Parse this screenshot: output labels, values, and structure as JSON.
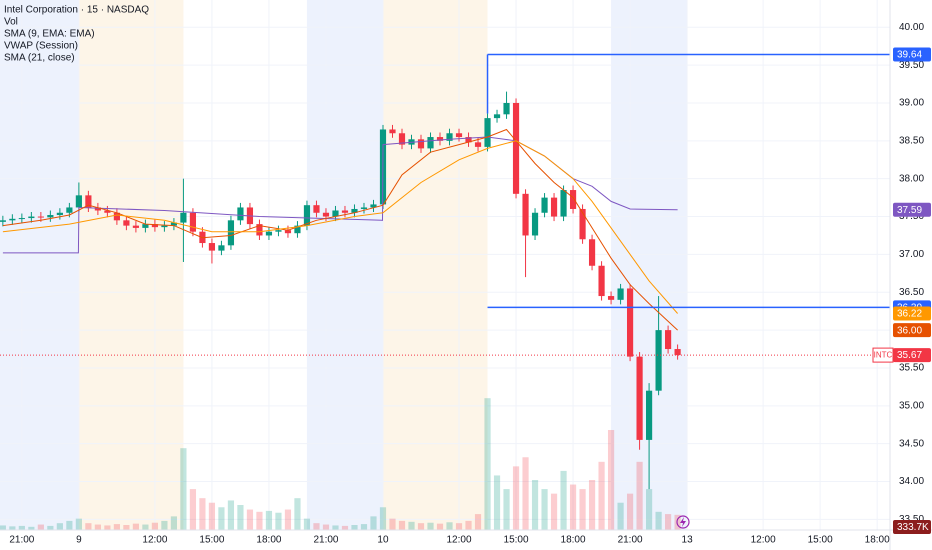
{
  "chart_data": {
    "type": "candlestick",
    "title": "Intel Corporation · 15 · NASDAQ",
    "indicators_legend": [
      "Vol",
      "SMA (9, EMA: EMA)",
      "VWAP (Session)",
      "SMA (21, close)"
    ],
    "up_color": "#089981",
    "down_color": "#f23645",
    "grid": true,
    "xlim": [
      -4.6,
      182.7
    ],
    "ylim": [
      33.36,
      40.36
    ],
    "vlim": [
      0,
      5500000
    ],
    "xticks": [
      {
        "value": 0,
        "label": "21:00"
      },
      {
        "value": 12,
        "label": "9"
      },
      {
        "value": 28,
        "label": "12:00"
      },
      {
        "value": 40,
        "label": "15:00"
      },
      {
        "value": 52,
        "label": "18:00"
      },
      {
        "value": 64,
        "label": "21:00"
      },
      {
        "value": 76,
        "label": "10"
      },
      {
        "value": 92,
        "label": "12:00"
      },
      {
        "value": 104,
        "label": "15:00"
      },
      {
        "value": 116,
        "label": "18:00"
      },
      {
        "value": 128,
        "label": "21:00"
      },
      {
        "value": 140,
        "label": "13"
      },
      {
        "value": 156,
        "label": "12:00"
      },
      {
        "value": 168,
        "label": "15:00"
      },
      {
        "value": 180,
        "label": "18:00"
      }
    ],
    "yticks": [
      {
        "value": 33.5,
        "label": "33.50"
      },
      {
        "value": 34,
        "label": "34.00"
      },
      {
        "value": 34.5,
        "label": "34.50"
      },
      {
        "value": 35,
        "label": "35.00"
      },
      {
        "value": 35.5,
        "label": "35.50"
      },
      {
        "value": 36,
        "label": "36.00"
      },
      {
        "value": 36.5,
        "label": "36.50"
      },
      {
        "value": 37,
        "label": "37.00"
      },
      {
        "value": 37.5,
        "label": "37.50"
      },
      {
        "value": 38,
        "label": "38.00"
      },
      {
        "value": 38.5,
        "label": "38.50"
      },
      {
        "value": 39,
        "label": "39.00"
      },
      {
        "value": 39.5,
        "label": "39.50"
      },
      {
        "value": 40,
        "label": "40.00"
      }
    ],
    "sessions": [
      {
        "start": -4.6,
        "end": 12,
        "color": "#edf2fd"
      },
      {
        "start": 12,
        "end": 34,
        "color": "#fdf5e8"
      },
      {
        "start": 60,
        "end": 76,
        "color": "#edf2fd"
      },
      {
        "start": 76,
        "end": 98,
        "color": "#fdf5e8"
      },
      {
        "start": 124,
        "end": 140,
        "color": "#edf2fd"
      }
    ],
    "x": [
      -4,
      -2,
      0,
      2,
      4,
      6,
      8,
      10,
      12,
      14,
      16,
      18,
      20,
      22,
      24,
      26,
      28,
      30,
      32,
      34,
      36,
      38,
      40,
      42,
      44,
      46,
      48,
      50,
      52,
      54,
      56,
      58,
      60,
      62,
      64,
      66,
      68,
      70,
      72,
      74,
      76,
      78,
      80,
      82,
      84,
      86,
      88,
      90,
      92,
      94,
      96,
      98,
      100,
      102,
      104,
      106,
      108,
      110,
      112,
      114,
      116,
      118,
      120,
      122,
      124,
      126,
      128,
      130,
      132,
      134,
      136,
      138
    ],
    "open": [
      37.43,
      37.45,
      37.47,
      37.48,
      37.5,
      37.49,
      37.52,
      37.55,
      37.62,
      37.78,
      37.62,
      37.58,
      37.55,
      37.45,
      37.38,
      37.35,
      37.4,
      37.36,
      37.38,
      37.42,
      37.55,
      37.3,
      37.15,
      37.05,
      37.12,
      37.45,
      37.62,
      37.4,
      37.25,
      37.3,
      37.32,
      37.28,
      37.38,
      37.65,
      37.55,
      37.5,
      37.58,
      37.55,
      37.6,
      37.62,
      37.66,
      38.65,
      38.6,
      38.45,
      38.52,
      38.4,
      38.55,
      38.5,
      38.6,
      38.55,
      38.48,
      38.42,
      38.8,
      38.85,
      39.0,
      37.8,
      37.25,
      37.55,
      37.75,
      37.5,
      37.85,
      37.6,
      37.2,
      36.85,
      36.45,
      36.4,
      36.55,
      35.65,
      34.55,
      35.2,
      36.0,
      35.75
    ],
    "high": [
      37.51,
      37.53,
      37.54,
      37.56,
      37.56,
      37.58,
      37.61,
      37.68,
      37.95,
      37.84,
      37.68,
      37.64,
      37.61,
      37.51,
      37.44,
      37.46,
      37.46,
      37.44,
      37.48,
      38.0,
      37.61,
      37.36,
      37.21,
      37.18,
      37.51,
      37.68,
      37.68,
      37.46,
      37.36,
      37.38,
      37.38,
      37.44,
      37.71,
      37.71,
      37.61,
      37.64,
      37.64,
      37.66,
      37.68,
      37.72,
      38.71,
      38.71,
      38.66,
      38.58,
      38.58,
      38.61,
      38.61,
      38.66,
      38.66,
      38.61,
      38.54,
      38.86,
      38.91,
      39.15,
      39.06,
      37.86,
      37.61,
      37.81,
      37.81,
      37.91,
      37.91,
      37.66,
      37.26,
      36.91,
      36.51,
      36.61,
      36.61,
      35.71,
      35.3,
      36.45,
      36.06,
      35.81
    ],
    "low": [
      37.37,
      37.39,
      37.41,
      37.42,
      37.43,
      37.43,
      37.46,
      37.49,
      37.56,
      37.56,
      37.52,
      37.49,
      37.39,
      37.32,
      37.29,
      37.29,
      37.3,
      37.3,
      37.32,
      36.9,
      37.24,
      37.09,
      36.88,
      36.99,
      37.06,
      37.39,
      37.34,
      37.19,
      37.19,
      37.24,
      37.22,
      37.22,
      37.32,
      37.49,
      37.44,
      37.44,
      37.49,
      37.49,
      37.54,
      37.56,
      37.6,
      38.54,
      38.39,
      38.39,
      38.34,
      38.34,
      38.44,
      38.44,
      38.49,
      38.42,
      38.36,
      38.36,
      38.74,
      38.79,
      37.74,
      36.7,
      37.19,
      37.49,
      37.44,
      37.44,
      37.54,
      37.14,
      36.79,
      36.39,
      36.34,
      36.34,
      35.59,
      34.42,
      33.9,
      35.14,
      35.69,
      35.61
    ],
    "close": [
      37.45,
      37.47,
      37.48,
      37.5,
      37.49,
      37.52,
      37.55,
      37.62,
      37.78,
      37.62,
      37.58,
      37.55,
      37.45,
      37.38,
      37.35,
      37.4,
      37.36,
      37.38,
      37.42,
      37.55,
      37.3,
      37.15,
      37.05,
      37.12,
      37.45,
      37.62,
      37.4,
      37.25,
      37.3,
      37.32,
      37.28,
      37.38,
      37.65,
      37.55,
      37.5,
      37.58,
      37.55,
      37.6,
      37.62,
      37.66,
      38.65,
      38.6,
      38.45,
      38.52,
      38.4,
      38.55,
      38.5,
      38.6,
      38.55,
      38.48,
      38.42,
      38.8,
      38.85,
      39.0,
      37.8,
      37.25,
      37.55,
      37.75,
      37.5,
      37.85,
      37.6,
      37.2,
      36.85,
      36.45,
      36.4,
      36.55,
      35.65,
      34.55,
      35.2,
      36.0,
      35.75,
      35.67
    ],
    "volume": [
      100000,
      80000,
      90000,
      70000,
      120000,
      90000,
      150000,
      200000,
      250000,
      150000,
      120000,
      100000,
      130000,
      110000,
      140000,
      120000,
      160000,
      200000,
      300000,
      1800000,
      900000,
      700000,
      600000,
      500000,
      650000,
      550000,
      450000,
      400000,
      420000,
      380000,
      450000,
      700000,
      250000,
      150000,
      120000,
      100000,
      90000,
      110000,
      130000,
      300000,
      500000,
      250000,
      200000,
      180000,
      150000,
      160000,
      140000,
      170000,
      150000,
      200000,
      350000,
      2900000,
      1200000,
      900000,
      1400000,
      1600000,
      1100000,
      900000,
      800000,
      1300000,
      1000000,
      900000,
      1100000,
      1500000,
      2200000,
      600000,
      800000,
      1500000,
      900000,
      400000,
      350000,
      333700
    ],
    "lines": [
      {
        "name": "VWAP (Session)",
        "color": "#7e57c2",
        "x": [
          -4,
          11.9,
          12,
          30,
          50,
          75.9,
          76,
          90,
          98,
          104,
          110,
          116,
          120,
          124,
          128,
          138
        ],
        "values": [
          37.02,
          37.02,
          37.62,
          37.58,
          37.5,
          37.45,
          38.45,
          38.52,
          38.55,
          38.5,
          38.3,
          38.0,
          37.9,
          37.7,
          37.6,
          37.59
        ]
      },
      {
        "name": "SMA (9, EMA: EMA)",
        "color": "#e65100",
        "x": [
          -4,
          4,
          10,
          14,
          20,
          26,
          32,
          38,
          44,
          50,
          56,
          62,
          70,
          76,
          80,
          86,
          92,
          98,
          102,
          104,
          108,
          112,
          116,
          120,
          124,
          128,
          132,
          138
        ],
        "values": [
          37.38,
          37.45,
          37.52,
          37.65,
          37.55,
          37.4,
          37.38,
          37.22,
          37.25,
          37.38,
          37.32,
          37.45,
          37.55,
          37.65,
          38.05,
          38.35,
          38.45,
          38.55,
          38.65,
          38.5,
          38.2,
          37.95,
          37.75,
          37.35,
          36.95,
          36.6,
          36.35,
          36.0
        ]
      },
      {
        "name": "SMA (21, close)",
        "color": "#ff9800",
        "x": [
          -4,
          10,
          20,
          30,
          40,
          50,
          60,
          70,
          76,
          84,
          92,
          98,
          104,
          110,
          116,
          120,
          124,
          128,
          132,
          138
        ],
        "values": [
          37.3,
          37.4,
          37.52,
          37.45,
          37.3,
          37.3,
          37.38,
          37.5,
          37.55,
          37.95,
          38.25,
          38.4,
          38.5,
          38.3,
          38.0,
          37.7,
          37.35,
          37.0,
          36.65,
          36.22
        ]
      }
    ],
    "levels": [
      {
        "value": 39.64,
        "start": 98,
        "color": "#2962ff"
      },
      {
        "value": 36.3,
        "start": 98,
        "color": "#2962ff"
      }
    ],
    "last_price": 35.67,
    "price_badges": [
      {
        "value": 39.64,
        "label": "39.64",
        "color": "#2962ff"
      },
      {
        "value": 37.59,
        "label": "37.59",
        "color": "#7e57c2"
      },
      {
        "value": 36.3,
        "label": "36.30",
        "color": "#2962ff"
      },
      {
        "value": 36.22,
        "label": "36.22",
        "color": "#ff9800"
      },
      {
        "value": 36,
        "label": "36.00",
        "color": "#e65100"
      },
      {
        "value": 35.67,
        "label": "35.67",
        "color": "#f23645",
        "symbol": "INTC"
      }
    ],
    "volume_badge": {
      "value": 333700,
      "label": "333.7K",
      "color": "#8c1d1d"
    }
  }
}
